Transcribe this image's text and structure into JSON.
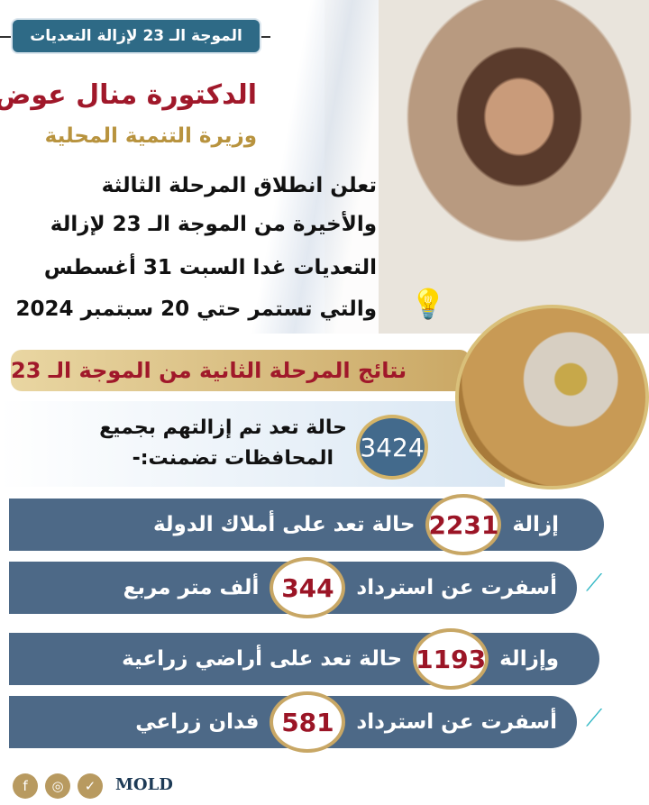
{
  "tag": "الموجة الـ 23 لإزالة التعديات",
  "name": "الدكتورة منال عوض",
  "title": "وزيرة التنمية المحلية",
  "announcement": [
    "تعلن انطلاق المرحلة الثالثة",
    "والأخيرة من الموجة الـ 23 لإزالة",
    "التعديات غدا السبت 31 أغسطس",
    "والتي تستمر حتي 20 سبتمبر 2024"
  ],
  "results_header": "نتائج المرحلة الثانية من الموجة الـ 23",
  "total": {
    "value": "3424",
    "line1": "حالة تعد تم إزالتهم بجميع",
    "line2": "المحافظات تضمنت:-"
  },
  "rows": [
    {
      "before": "إزالة",
      "value": "2231",
      "after": "حالة تعد على أملاك الدولة",
      "color": "#1a8fd6"
    },
    {
      "before": "أسفرت عن استرداد",
      "value": "344",
      "after": "ألف متر مربع",
      "color": "#f39a2d"
    },
    {
      "before": "وإزالة",
      "value": "1193",
      "after": "حالة تعد على أراضي زراعية",
      "color": "#7cc11d"
    },
    {
      "before": "أسفرت عن استرداد",
      "value": "581",
      "after": "فدان زراعي",
      "color": "#c0201f"
    }
  ],
  "social": {
    "facebook": "f",
    "instagram": "◎",
    "twitter": "✓",
    "brand": "MOLD"
  },
  "colors": {
    "bar": "#4d6987",
    "accent": "#a0182a",
    "gold": "#c8a765",
    "tag": "#2e6a86"
  }
}
